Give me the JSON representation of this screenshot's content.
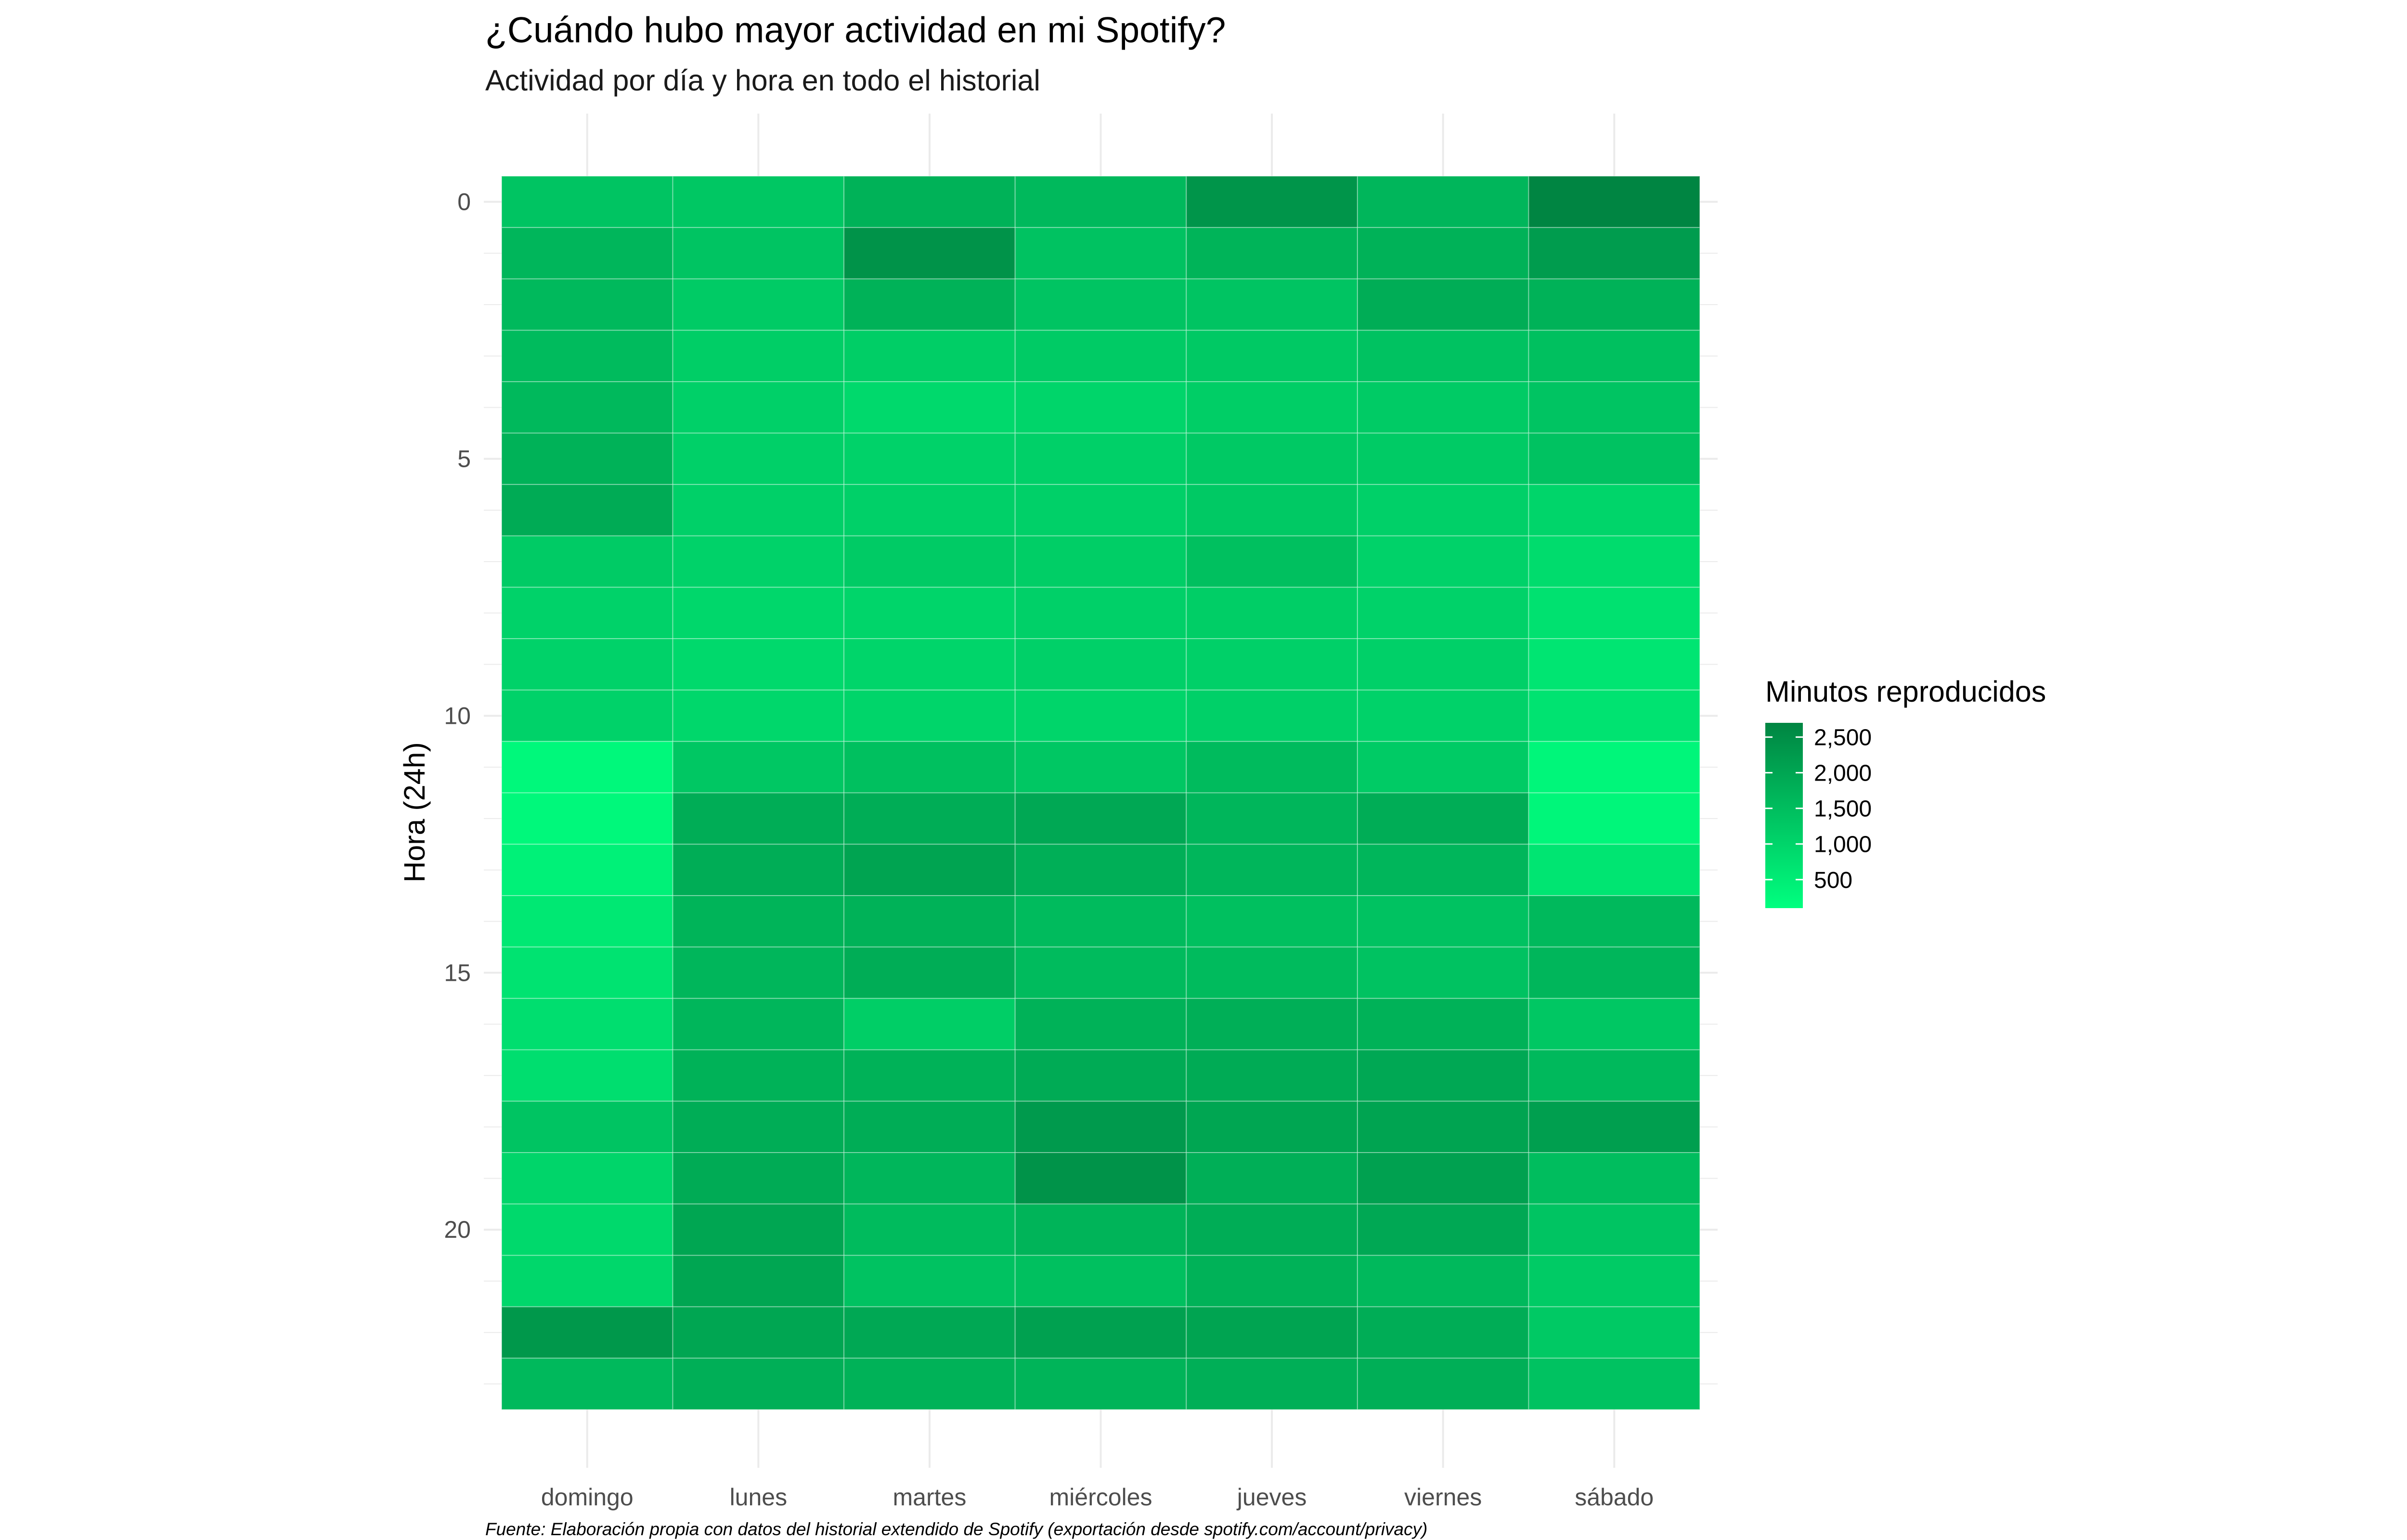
{
  "chart_data": {
    "type": "heatmap",
    "title": "¿Cuándo hubo mayor actividad en mi Spotify?",
    "subtitle": "Actividad por día y hora en todo el historial",
    "xlabel": "",
    "ylabel": "Hora (24h)",
    "caption": "Fuente: Elaboración propia con datos del historial extendido de Spotify (exportación desde spotify.com/account/privacy)",
    "x_categories": [
      "domingo",
      "lunes",
      "martes",
      "miércoles",
      "jueves",
      "viernes",
      "sábado"
    ],
    "y_categories": [
      0,
      1,
      2,
      3,
      4,
      5,
      6,
      7,
      8,
      9,
      10,
      11,
      12,
      13,
      14,
      15,
      16,
      17,
      18,
      19,
      20,
      21,
      22,
      23
    ],
    "y_ticks": [
      0,
      5,
      10,
      15,
      20
    ],
    "y_reversed": true,
    "legend": {
      "title": "Minutos reproducidos",
      "breaks": [
        2500,
        2000,
        1500,
        1000,
        500
      ],
      "break_labels": [
        "2,500",
        "2,000",
        "1,500",
        "1,000",
        "500"
      ],
      "range": [
        100,
        2700
      ],
      "color_low": "#00ff7f",
      "color_high": "#008542",
      "placement": "right"
    },
    "values": [
      [
        1350,
        1300,
        1750,
        1600,
        2350,
        1650,
        2700
      ],
      [
        1650,
        1350,
        2400,
        1400,
        1700,
        1750,
        2200
      ],
      [
        1600,
        1200,
        1750,
        1350,
        1350,
        1850,
        1750
      ],
      [
        1550,
        1150,
        1150,
        1200,
        1250,
        1400,
        1450
      ],
      [
        1600,
        1100,
        900,
        1000,
        1150,
        1200,
        1350
      ],
      [
        1750,
        1100,
        1050,
        1100,
        1250,
        1200,
        1400
      ],
      [
        1900,
        1100,
        1100,
        1100,
        1250,
        1100,
        1000
      ],
      [
        1200,
        1050,
        1200,
        1150,
        1450,
        1050,
        850
      ],
      [
        1050,
        950,
        1000,
        1100,
        1150,
        1050,
        750
      ],
      [
        1050,
        900,
        1000,
        1100,
        1100,
        1100,
        650
      ],
      [
        1050,
        950,
        1000,
        1000,
        1100,
        1050,
        700
      ],
      [
        250,
        1300,
        1450,
        1300,
        1550,
        1200,
        300
      ],
      [
        250,
        1850,
        1850,
        1950,
        1650,
        1850,
        300
      ],
      [
        400,
        1850,
        2050,
        1800,
        1650,
        1650,
        650
      ],
      [
        600,
        1700,
        1750,
        1550,
        1450,
        1400,
        1600
      ],
      [
        700,
        1650,
        1850,
        1550,
        1550,
        1400,
        1650
      ],
      [
        800,
        1650,
        1150,
        1750,
        1800,
        1750,
        1300
      ],
      [
        800,
        1750,
        1750,
        1900,
        1900,
        1950,
        1600
      ],
      [
        1350,
        1850,
        1850,
        2250,
        2000,
        2050,
        2150
      ],
      [
        1000,
        1900,
        1650,
        2400,
        1800,
        2100,
        1500
      ],
      [
        900,
        2000,
        1550,
        1700,
        1850,
        1950,
        1350
      ],
      [
        950,
        2000,
        1400,
        1450,
        1750,
        1600,
        1200
      ],
      [
        2300,
        2000,
        1950,
        2100,
        2050,
        1850,
        1250
      ],
      [
        1600,
        1800,
        1750,
        1700,
        1800,
        1800,
        1400
      ]
    ]
  }
}
